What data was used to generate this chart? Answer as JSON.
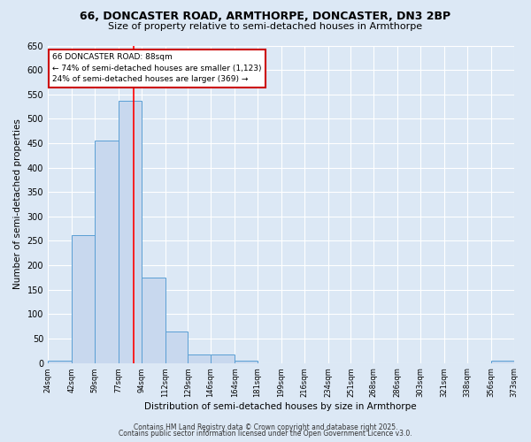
{
  "title1": "66, DONCASTER ROAD, ARMTHORPE, DONCASTER, DN3 2BP",
  "title2": "Size of property relative to semi-detached houses in Armthorpe",
  "xlabel": "Distribution of semi-detached houses by size in Armthorpe",
  "ylabel": "Number of semi-detached properties",
  "footnote1": "Contains HM Land Registry data © Crown copyright and database right 2025.",
  "footnote2": "Contains public sector information licensed under the Open Government Licence v3.0.",
  "annotation_title": "66 DONCASTER ROAD: 88sqm",
  "annotation_line1": "← 74% of semi-detached houses are smaller (1,123)",
  "annotation_line2": "24% of semi-detached houses are larger (369) →",
  "bar_edges": [
    24,
    42,
    59,
    77,
    94,
    112,
    129,
    146,
    164,
    181,
    199,
    216,
    234,
    251,
    268,
    286,
    303,
    321,
    338,
    356,
    373
  ],
  "bar_heights": [
    5,
    262,
    456,
    537,
    175,
    65,
    17,
    17,
    5,
    0,
    0,
    0,
    0,
    0,
    0,
    0,
    0,
    0,
    0,
    5
  ],
  "bar_color": "#c8d8ee",
  "bar_edgecolor": "#5a9fd4",
  "red_line_x": 88,
  "ylim": [
    0,
    650
  ],
  "yticks": [
    0,
    50,
    100,
    150,
    200,
    250,
    300,
    350,
    400,
    450,
    500,
    550,
    600,
    650
  ],
  "bg_color": "#dce8f5",
  "grid_color": "#ffffff",
  "annotation_box_color": "#ffffff",
  "annotation_box_edgecolor": "#cc0000"
}
